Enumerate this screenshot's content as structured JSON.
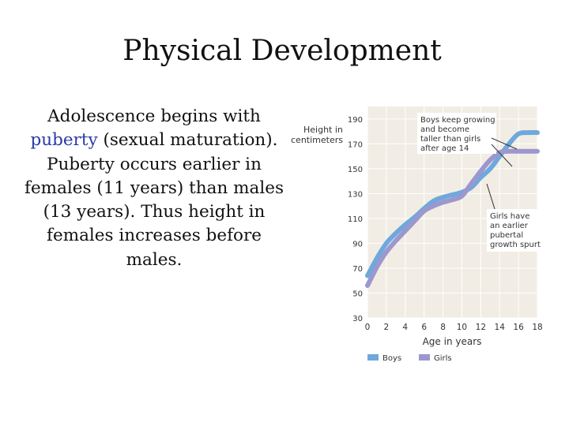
{
  "slide": {
    "title": "Physical Development",
    "text_before": "Adolescence begins with ",
    "highlight": "puberty",
    "text_after": " (sexual maturation). Puberty occurs earlier in females (11 years) than males (13 years). Thus height in females increases before males.",
    "highlight_color": "#2a3aa6"
  },
  "chart_data": {
    "type": "line",
    "title": "",
    "ylabel": "Height in centimeters",
    "xlabel": "Age in years",
    "x_ticks": [
      0,
      2,
      4,
      6,
      8,
      10,
      12,
      14,
      16,
      18
    ],
    "y_ticks": [
      30,
      50,
      70,
      90,
      110,
      130,
      150,
      170,
      190
    ],
    "xlim": [
      0,
      18
    ],
    "ylim": [
      30,
      200
    ],
    "grid": true,
    "background": "#f1ede4",
    "legend_position": "bottom",
    "series": [
      {
        "name": "Boys",
        "color": "#6fa8dc",
        "x": [
          0,
          1,
          2,
          3,
          4,
          5,
          6,
          7,
          8,
          9,
          10,
          11,
          12,
          13,
          14,
          15,
          16,
          17,
          18
        ],
        "y": [
          64,
          78,
          90,
          98,
          105,
          111,
          118,
          124,
          127,
          129,
          131,
          135,
          143,
          150,
          160,
          170,
          178,
          179,
          179
        ]
      },
      {
        "name": "Girls",
        "color": "#9c97cf",
        "x": [
          0,
          1,
          2,
          3,
          4,
          5,
          6,
          7,
          8,
          9,
          10,
          11,
          12,
          13,
          14,
          15,
          16,
          17,
          18
        ],
        "y": [
          56,
          71,
          83,
          92,
          100,
          108,
          116,
          120,
          123,
          125,
          128,
          138,
          148,
          157,
          163,
          164,
          164,
          164,
          164
        ]
      }
    ],
    "annotations": [
      {
        "lines": [
          "Boys keep growing",
          "and become",
          "taller than girls",
          "after age 14"
        ]
      },
      {
        "lines": [
          "Girls have",
          "an earlier",
          "pubertal",
          "growth spurt"
        ]
      }
    ]
  }
}
